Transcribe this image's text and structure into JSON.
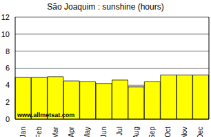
{
  "chart_data": {
    "type": "bar",
    "title": "São Joaquim : sunshine (hours)",
    "categories": [
      "Jan",
      "Feb",
      "Mar",
      "Apr",
      "May",
      "Jun",
      "Jul",
      "Aug",
      "Sep",
      "Oct",
      "Nov",
      "Dec"
    ],
    "values": [
      4.9,
      4.9,
      5.0,
      4.5,
      4.4,
      4.2,
      4.6,
      3.8,
      4.4,
      5.2,
      5.2,
      5.2
    ],
    "color": "#ffff00",
    "ylim": [
      0,
      12
    ],
    "yticks": [
      0,
      2,
      4,
      6,
      8,
      10,
      12
    ],
    "grid": true,
    "annotations": [
      "www.allmetsat.com"
    ]
  }
}
